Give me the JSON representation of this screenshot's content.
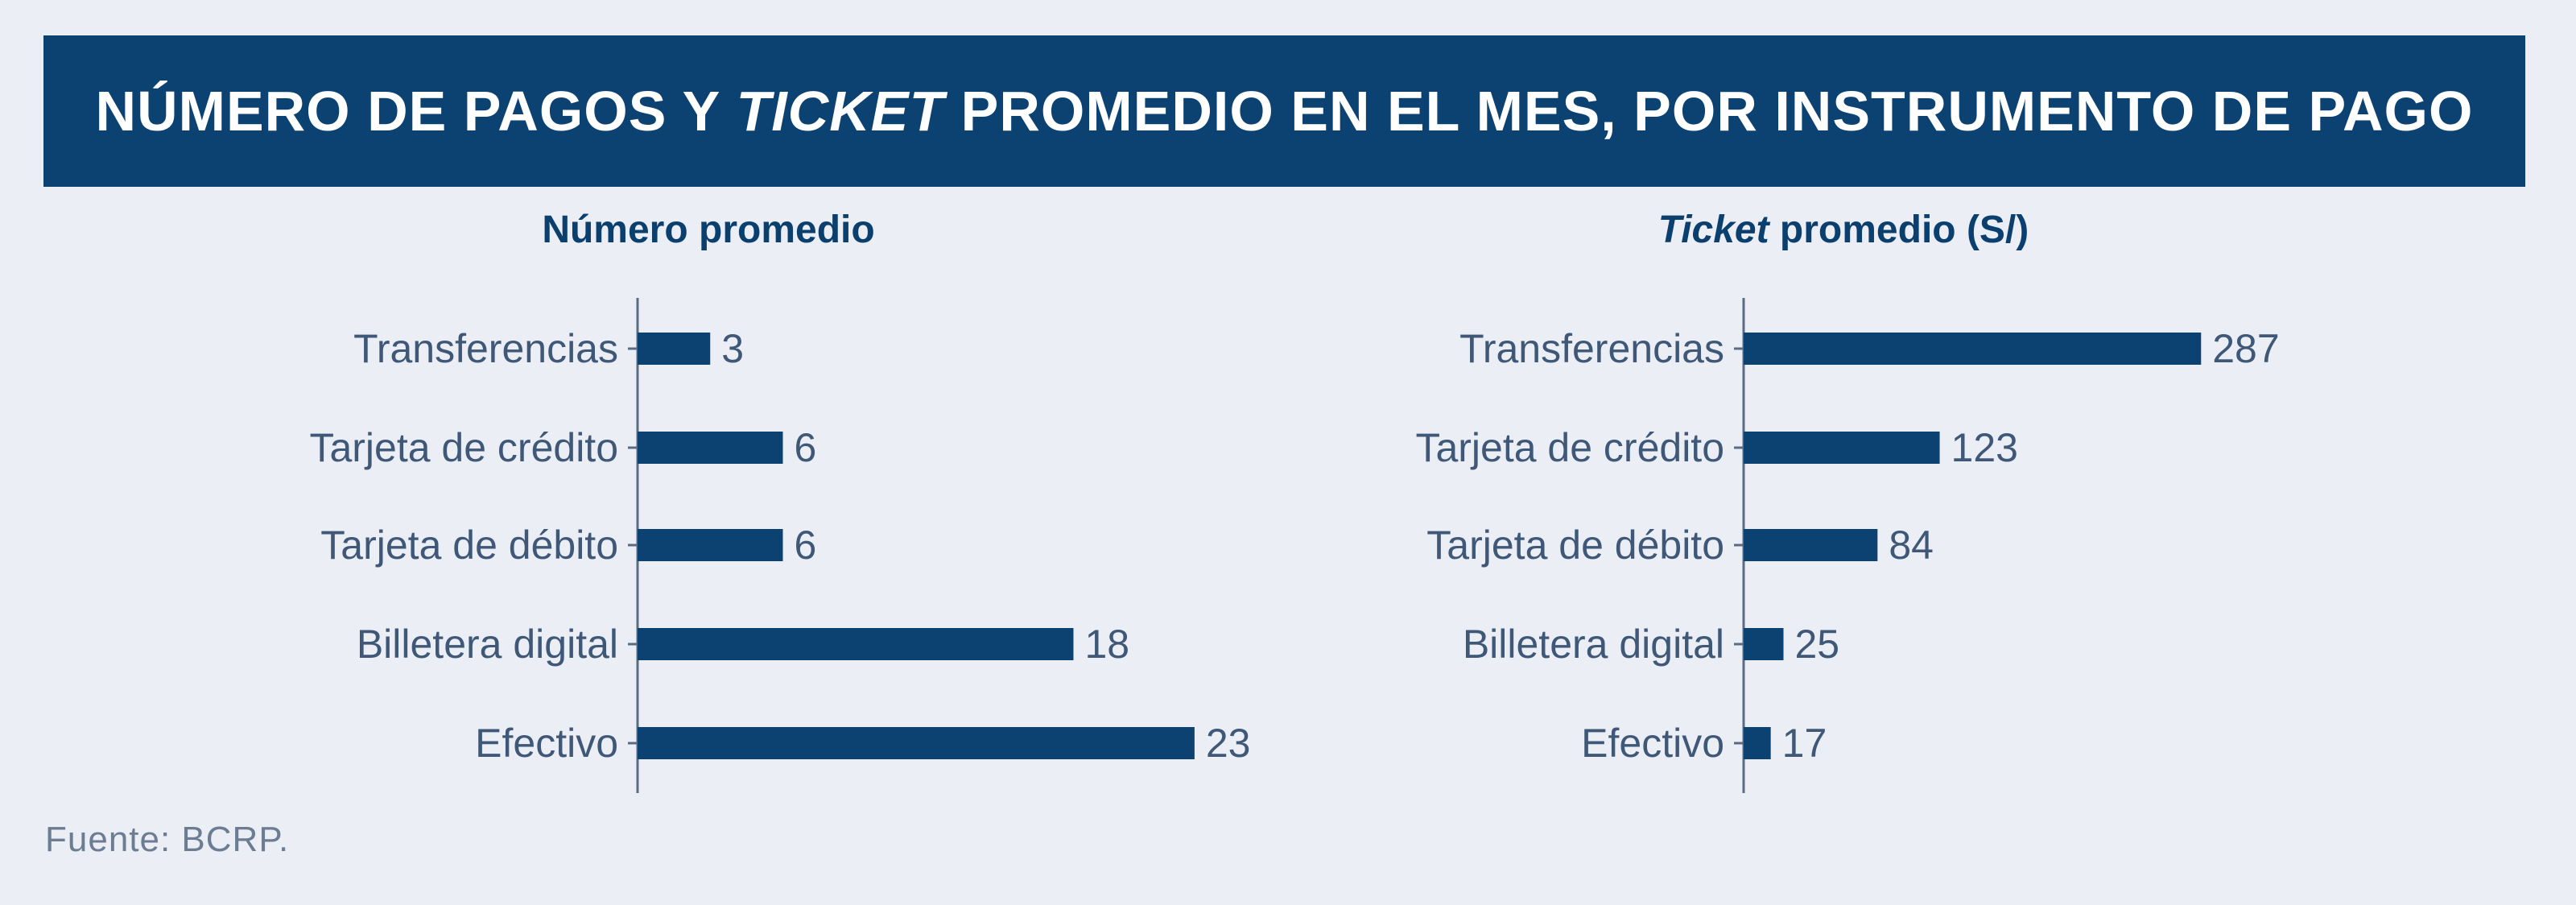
{
  "title": {
    "part1": "NÚMERO DE PAGOS Y ",
    "italic": "TICKET",
    "part2": " PROMEDIO EN EL MES, POR INSTRUMENTO DE PAGO"
  },
  "source": "Fuente: BCRP.",
  "colors": {
    "banner": "#0b4271",
    "bar": "#0b4271",
    "background": "#eceef5"
  },
  "chart_data": [
    {
      "type": "bar",
      "orientation": "horizontal",
      "title": "Número promedio",
      "title_italic": "",
      "categories": [
        "Transferencias",
        "Tarjeta de crédito",
        "Tarjeta de débito",
        "Billetera digital",
        "Efectivo"
      ],
      "values": [
        3,
        6,
        6,
        18,
        23
      ],
      "xlim": [
        0,
        24.5
      ]
    },
    {
      "type": "bar",
      "orientation": "horizontal",
      "title": " promedio (S/)",
      "title_italic": "Ticket",
      "categories": [
        "Transferencias",
        "Tarjeta de crédito",
        "Tarjeta de débito",
        "Billetera digital",
        "Efectivo"
      ],
      "values": [
        287,
        123,
        84,
        25,
        17
      ],
      "xlim": [
        0,
        300
      ]
    }
  ]
}
